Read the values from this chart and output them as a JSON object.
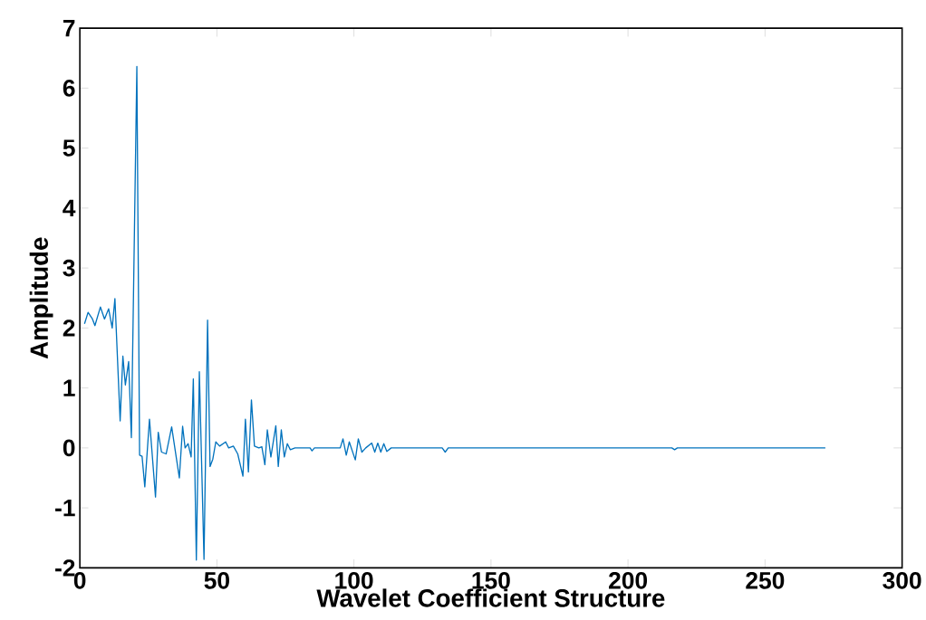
{
  "chart_data": {
    "type": "line",
    "xlabel": "Wavelet Coefficient Structure",
    "ylabel": "Amplitude",
    "xlim": [
      0,
      300
    ],
    "ylim": [
      -2,
      7
    ],
    "xticks": [
      0,
      50,
      100,
      150,
      200,
      250,
      300
    ],
    "yticks": [
      -2,
      -1,
      0,
      1,
      2,
      3,
      4,
      5,
      6,
      7
    ],
    "grid": false,
    "line_style": "solid",
    "series": [
      {
        "color": "#0072bd",
        "x": [
          1.7,
          3,
          4.6,
          5.5,
          7.5,
          9,
          10.5,
          11.8,
          12.8,
          14.7,
          15.7,
          16.6,
          17.8,
          18.8,
          20.8,
          21.8,
          22.7,
          23.7,
          25.4,
          27.6,
          28.6,
          29.8,
          31.5,
          33.5,
          36.3,
          37.5,
          38.4,
          39.5,
          40.6,
          41.4,
          42.5,
          43.6,
          45.3,
          46.6,
          47.5,
          48.5,
          49.6,
          51,
          53.2,
          54.3,
          56,
          57.6,
          59.5,
          60.4,
          61.5,
          62.6,
          63.7,
          65.3,
          66.4,
          67.5,
          68.4,
          69.7,
          71.5,
          72.4,
          73.5,
          74.6,
          75.7,
          76.8,
          78.5,
          84,
          84.7,
          85.6,
          95,
          96,
          97.2,
          98.3,
          99.4,
          100.5,
          101.6,
          102.9,
          104.3,
          106.5,
          107.6,
          108.7,
          109.8,
          110.9,
          112,
          113.6,
          132.2,
          133.3,
          134.4,
          216,
          217,
          218,
          272
        ],
        "values": [
          2.07,
          2.26,
          2.15,
          2.04,
          2.35,
          2.15,
          2.32,
          2.0,
          2.49,
          0.45,
          1.53,
          1.05,
          1.44,
          0.17,
          6.36,
          -0.12,
          -0.14,
          -0.65,
          0.48,
          -0.82,
          0.26,
          -0.07,
          -0.1,
          0.35,
          -0.5,
          0.36,
          0,
          0.07,
          -0.15,
          1.15,
          -1.87,
          1.27,
          -1.86,
          2.13,
          -0.31,
          -0.19,
          0.1,
          0.03,
          0.1,
          0,
          0.03,
          -0.1,
          -0.47,
          0.48,
          -0.4,
          0.8,
          0.03,
          0,
          0.02,
          -0.28,
          0.3,
          -0.15,
          0.37,
          -0.31,
          0.3,
          -0.15,
          0.07,
          -0.03,
          0,
          0,
          -0.05,
          0,
          0,
          0.15,
          -0.12,
          0.1,
          -0.05,
          -0.2,
          0.15,
          -0.07,
          0,
          0.08,
          -0.07,
          0.08,
          -0.07,
          0.07,
          -0.06,
          0,
          0,
          -0.07,
          0,
          0,
          -0.03,
          0,
          0
        ]
      }
    ]
  }
}
